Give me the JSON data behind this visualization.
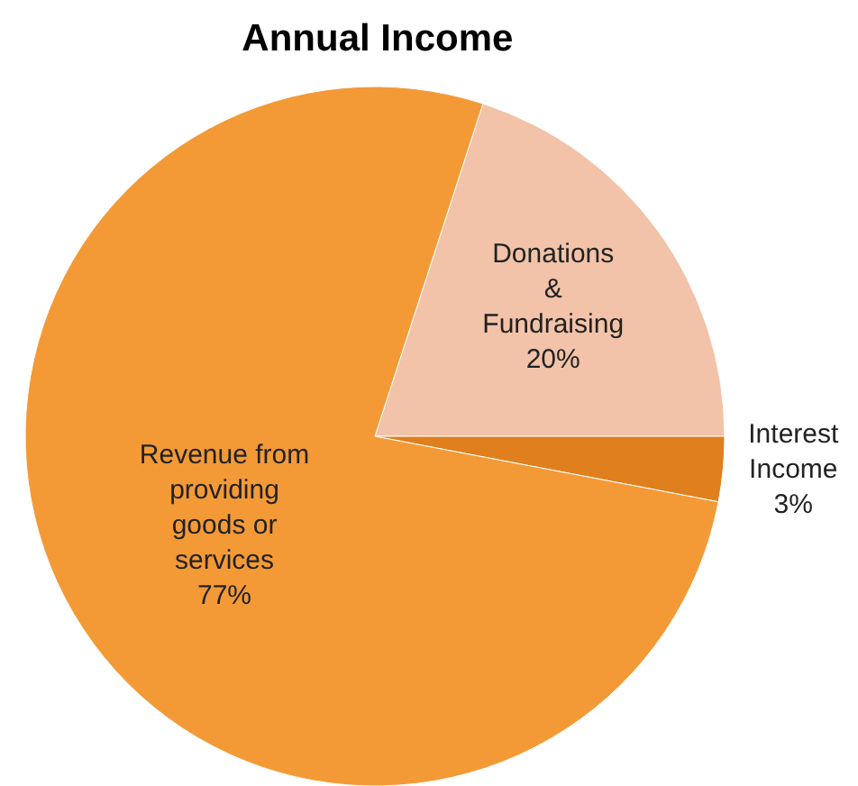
{
  "chart_data": {
    "type": "pie",
    "title": "Annual Income",
    "categories": [
      "Donations & Fundraising",
      "Interest Income",
      "Revenue from providing goods or services"
    ],
    "values": [
      20,
      3,
      77
    ],
    "colors": [
      "#f2c3a8",
      "#e07f1e",
      "#f39a37"
    ],
    "value_labels": [
      "20%",
      "3%",
      "77%"
    ]
  }
}
